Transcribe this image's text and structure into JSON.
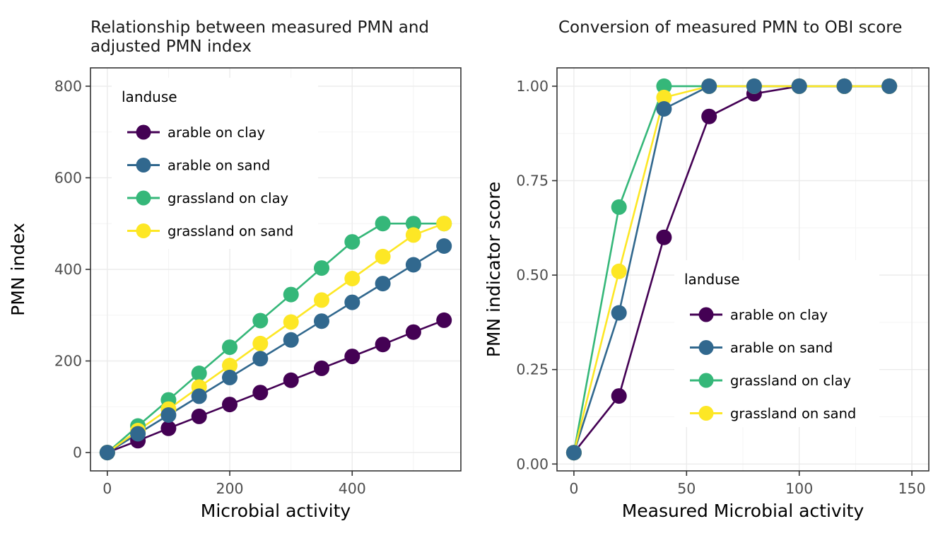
{
  "figure": {
    "background": "#ffffff",
    "panel_border_color": "#333333",
    "grid_major_color": "#ebebeb",
    "grid_minor_color": "#f4f4f4",
    "tick_color": "#333333",
    "tick_text_color": "#4d4d4d"
  },
  "chart_data": [
    {
      "type": "line",
      "panel": "left",
      "title": "Relationship between measured PMN and adjusted PMN index",
      "title_lines": [
        "Relationship between measured PMN and",
        "adjusted PMN index"
      ],
      "xlabel": "Microbial activity",
      "ylabel": "PMN index",
      "x": [
        0,
        50,
        100,
        150,
        200,
        250,
        300,
        350,
        400,
        450,
        500,
        550
      ],
      "series": [
        {
          "name": "arable on clay",
          "color": "#440154",
          "values": [
            0,
            26,
            53,
            79,
            105,
            131,
            158,
            184,
            210,
            236,
            263,
            289
          ]
        },
        {
          "name": "arable on sand",
          "color": "#31688E",
          "values": [
            0,
            41,
            82,
            123,
            164,
            205,
            246,
            287,
            328,
            369,
            410,
            451
          ]
        },
        {
          "name": "grassland on clay",
          "color": "#35B779",
          "values": [
            0,
            58,
            115,
            173,
            230,
            288,
            345,
            403,
            460,
            500,
            500,
            500
          ]
        },
        {
          "name": "grassland on sand",
          "color": "#FDE725",
          "values": [
            0,
            48,
            95,
            143,
            190,
            238,
            285,
            333,
            380,
            428,
            475,
            500
          ]
        }
      ],
      "axes": {
        "x_ticks": [
          0,
          200,
          400
        ],
        "x_tick_labels": [
          "0",
          "200",
          "400"
        ],
        "x_minor": [
          100,
          300,
          500
        ],
        "x_range": [
          -27.5,
          577.5
        ],
        "y_ticks": [
          0,
          200,
          400,
          600,
          800
        ],
        "y_tick_labels": [
          "0",
          "200",
          "400",
          "600",
          "800"
        ],
        "y_minor": [
          100,
          300,
          500,
          700
        ],
        "y_range": [
          -40,
          840
        ],
        "grid": true
      },
      "legend": {
        "title": "landuse",
        "position": "inside top-left",
        "items": [
          "arable on clay",
          "arable on sand",
          "grassland on clay",
          "grassland on sand"
        ]
      }
    },
    {
      "type": "line",
      "panel": "right",
      "title": "Conversion of measured PMN to OBI score",
      "title_lines": [
        "Conversion of measured PMN to OBI score"
      ],
      "xlabel": "Measured Microbial activity",
      "ylabel": "PMN indicator score",
      "x": [
        0,
        20,
        40,
        60,
        80,
        100,
        120,
        140
      ],
      "series": [
        {
          "name": "arable on clay",
          "color": "#440154",
          "values": [
            0.03,
            0.18,
            0.6,
            0.92,
            0.98,
            1.0,
            1.0,
            1.0
          ]
        },
        {
          "name": "arable on sand",
          "color": "#31688E",
          "values": [
            0.03,
            0.4,
            0.94,
            1.0,
            1.0,
            1.0,
            1.0,
            1.0
          ]
        },
        {
          "name": "grassland on clay",
          "color": "#35B779",
          "values": [
            0.03,
            0.68,
            1.0,
            1.0,
            1.0,
            1.0,
            1.0,
            1.0
          ]
        },
        {
          "name": "grassland on sand",
          "color": "#FDE725",
          "values": [
            0.03,
            0.51,
            0.97,
            1.0,
            1.0,
            1.0,
            1.0,
            1.0
          ]
        }
      ],
      "axes": {
        "x_ticks": [
          0,
          50,
          100,
          150
        ],
        "x_tick_labels": [
          "0",
          "50",
          "100",
          "150"
        ],
        "x_minor": [
          25,
          75,
          125
        ],
        "x_range": [
          -7.5,
          157.5
        ],
        "y_ticks": [
          0,
          0.25,
          0.5,
          0.75,
          1
        ],
        "y_tick_labels": [
          "0.00",
          "0.25",
          "0.50",
          "0.75",
          "1.00"
        ],
        "y_minor": [
          0.125,
          0.375,
          0.625,
          0.875
        ],
        "y_range": [
          -0.0182,
          1.0485
        ],
        "grid": true
      },
      "legend": {
        "title": "landuse",
        "position": "inside center-right",
        "items": [
          "arable on clay",
          "arable on sand",
          "grassland on clay",
          "grassland on sand"
        ]
      }
    }
  ]
}
